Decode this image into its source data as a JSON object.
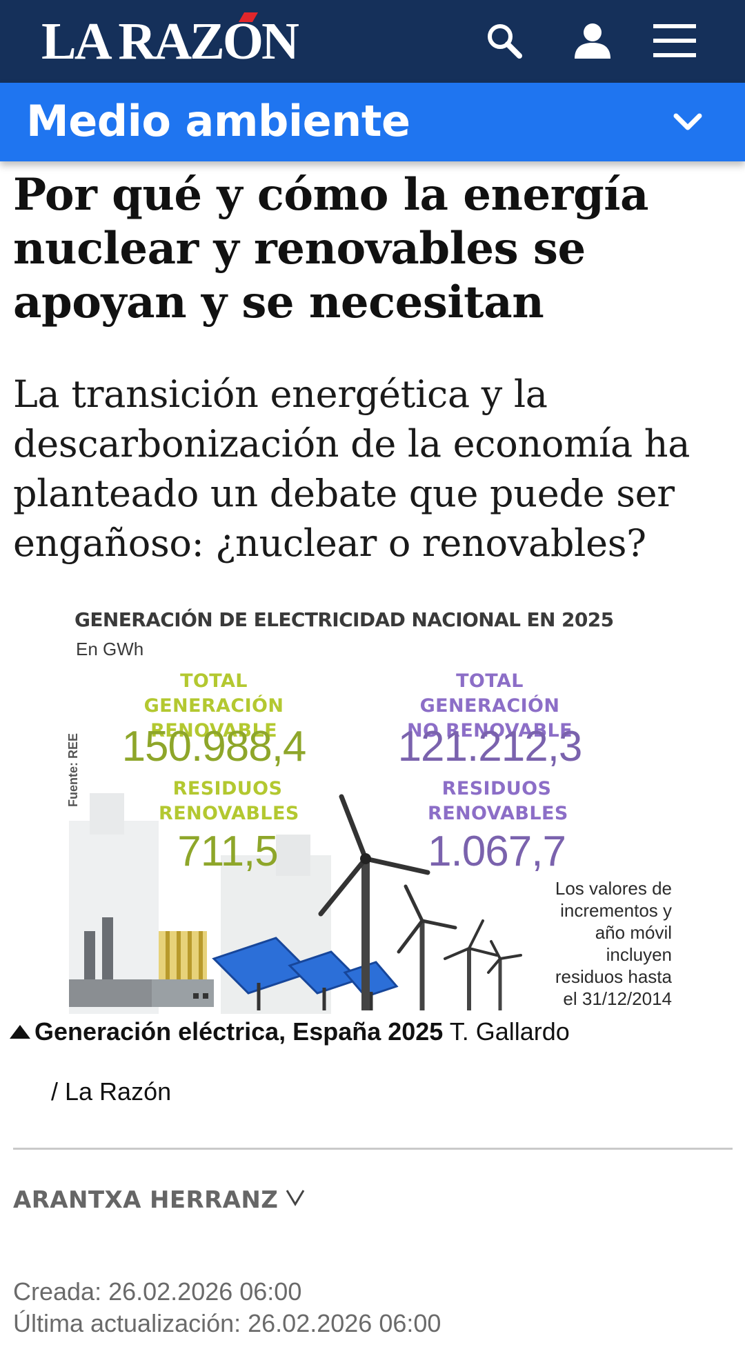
{
  "header": {
    "logo_text": "LA RAZÓN",
    "icons": [
      "search-icon",
      "user-icon",
      "menu-icon"
    ],
    "bg_color": "#15305a"
  },
  "section": {
    "title": "Medio ambiente",
    "bg_color": "#1f75f0"
  },
  "article": {
    "headline": "Por qué y cómo la energía nuclear y renovables se apoyan y se necesitan",
    "subheadline": "La transición energética y la descarbonización de la economía ha planteado un debate que puede ser engañoso: ¿nuclear o renovables?",
    "infographic": {
      "title": "GENERACIÓN DE ELECTRICIDAD NACIONAL EN 2025",
      "unit": "En GWh",
      "renewable_label_1": "TOTAL GENERACIÓN",
      "renewable_label_2": "RENOVABLE",
      "renewable_value": "150.988,4",
      "nonrenewable_label_1": "TOTAL GENERACIÓN",
      "nonrenewable_label_2": "NO RENOVABLE",
      "nonrenewable_value": "121.212,3",
      "waste_label_1": "RESIDUOS",
      "waste_label_2": "RENOVABLES",
      "renewable_waste_value": "711,5",
      "nonrenewable_waste_label_1": "RESIDUOS",
      "nonrenewable_waste_label_2": "RENOVABLES",
      "nonrenewable_waste_value": "1.067,7",
      "source": "Fuente: REE",
      "note_lines": [
        "Los valores de",
        "incrementos y",
        "año móvil",
        "incluyen",
        "residuos hasta",
        "el 31/12/2014"
      ],
      "green_color": "#b3c830",
      "purple_color": "#8c6ec7"
    },
    "caption_title": "Generación eléctrica, España 2025",
    "caption_author": "T. Gallardo",
    "credit": "/ La Razón",
    "author": "ARANTXA HERRANZ",
    "created": "Creada: 26.02.2026 06:00",
    "updated": "Última actualización: 26.02.2026 06:00"
  }
}
